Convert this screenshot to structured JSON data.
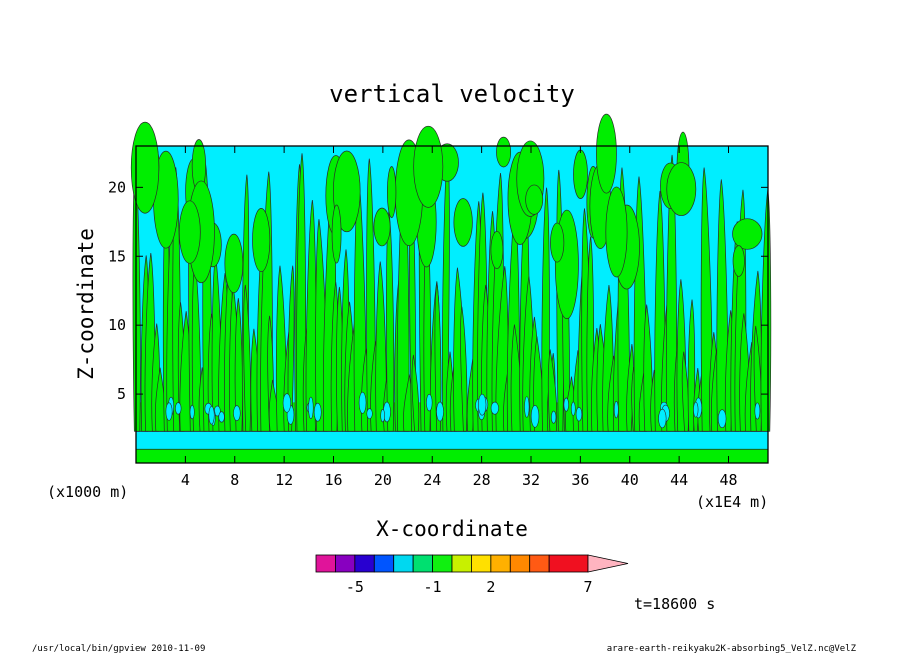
{
  "chart_data": {
    "type": "heatmap",
    "title": "vertical velocity",
    "xlabel": "X-coordinate",
    "ylabel": "Z-coordinate",
    "x_unit": "(x1E4 m)",
    "y_unit": "(x1000 m)",
    "xlim": [
      0,
      51.2
    ],
    "ylim": [
      0,
      23
    ],
    "x_ticks": [
      4,
      8,
      12,
      16,
      20,
      24,
      28,
      32,
      36,
      40,
      44,
      48
    ],
    "y_ticks": [
      5,
      10,
      15,
      20
    ],
    "grid": false,
    "colorbar": {
      "levels": [
        -7,
        -6,
        -5,
        -4,
        -3,
        -2,
        -1,
        0,
        1,
        2,
        3,
        4,
        5,
        7,
        9
      ],
      "colors": [
        "#e0149a",
        "#8800c0",
        "#2800d0",
        "#0055ff",
        "#00d8f0",
        "#00e070",
        "#10f010",
        "#c8f000",
        "#ffe000",
        "#ffb000",
        "#ff8800",
        "#ff5a14",
        "#f01020",
        "#ff8080",
        "#ffb4c0"
      ],
      "labels": [
        {
          "value": -5,
          "text": "-5"
        },
        {
          "value": -1,
          "text": "-1"
        },
        {
          "value": 2,
          "text": "2"
        },
        {
          "value": 7,
          "text": "7"
        }
      ]
    },
    "field_colors": {
      "updraft": "#00ee00",
      "downdraft": "#00eeff"
    },
    "annotation_time": "t=18600 s",
    "footer_left": "/usr/local/bin/gpview  2010-11-09",
    "footer_right": "arare-earth-reikyaku2K-absorbing5_VelZ.nc@VelZ"
  }
}
